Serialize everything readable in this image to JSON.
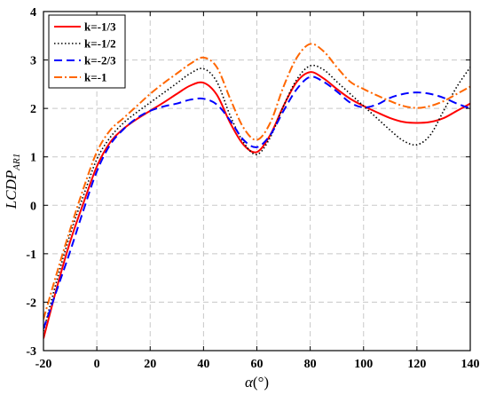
{
  "chart_data": {
    "type": "line",
    "title": "",
    "xlabel_main": "α",
    "xlabel_unit": "(°)",
    "ylabel_main": "LCDP",
    "ylabel_sub": "AR1",
    "xlim": [
      -20,
      140
    ],
    "ylim": [
      -3,
      4
    ],
    "xticks": [
      -20,
      0,
      20,
      40,
      60,
      80,
      100,
      120,
      140
    ],
    "yticks": [
      -3,
      -2,
      -1,
      0,
      1,
      2,
      3,
      4
    ],
    "grid": true,
    "legend_position": "top-left",
    "series": [
      {
        "name": "k=-1/3",
        "color": "#ff0000",
        "dash": "",
        "x": [
          -20,
          -15,
          -10,
          -5,
          0,
          5,
          10,
          15,
          20,
          25,
          30,
          35,
          40,
          45,
          50,
          55,
          60,
          65,
          70,
          75,
          80,
          85,
          90,
          95,
          100,
          105,
          110,
          115,
          120,
          125,
          130,
          135,
          140
        ],
        "y": [
          -2.75,
          -1.7,
          -0.75,
          0.05,
          0.8,
          1.3,
          1.58,
          1.78,
          1.95,
          2.12,
          2.3,
          2.47,
          2.53,
          2.28,
          1.7,
          1.25,
          1.1,
          1.45,
          2.05,
          2.55,
          2.75,
          2.62,
          2.4,
          2.2,
          2.05,
          1.92,
          1.8,
          1.72,
          1.7,
          1.72,
          1.8,
          1.95,
          2.1
        ]
      },
      {
        "name": "k=-1/2",
        "color": "#000000",
        "dash": "1.5,2.5",
        "x": [
          -20,
          -15,
          -10,
          -5,
          0,
          5,
          10,
          15,
          20,
          25,
          30,
          35,
          40,
          45,
          50,
          55,
          60,
          65,
          70,
          75,
          80,
          85,
          90,
          95,
          100,
          105,
          110,
          115,
          120,
          125,
          130,
          135,
          140
        ],
        "y": [
          -2.6,
          -1.55,
          -0.6,
          0.2,
          0.95,
          1.4,
          1.7,
          1.92,
          2.12,
          2.32,
          2.52,
          2.72,
          2.82,
          2.55,
          1.85,
          1.3,
          1.05,
          1.4,
          2.05,
          2.6,
          2.88,
          2.8,
          2.55,
          2.3,
          2.05,
          1.8,
          1.55,
          1.33,
          1.25,
          1.45,
          1.95,
          2.45,
          2.85
        ]
      },
      {
        "name": "k=-2/3",
        "color": "#0000ff",
        "dash": "9,5",
        "x": [
          -20,
          -15,
          -10,
          -5,
          0,
          5,
          10,
          15,
          20,
          25,
          30,
          35,
          40,
          45,
          50,
          55,
          60,
          65,
          70,
          75,
          80,
          85,
          90,
          95,
          100,
          105,
          110,
          115,
          120,
          125,
          130,
          135,
          140
        ],
        "y": [
          -2.55,
          -1.75,
          -0.95,
          -0.1,
          0.7,
          1.25,
          1.57,
          1.8,
          1.95,
          2.04,
          2.1,
          2.18,
          2.2,
          2.08,
          1.75,
          1.35,
          1.2,
          1.45,
          1.95,
          2.4,
          2.65,
          2.55,
          2.35,
          2.12,
          2.02,
          2.08,
          2.22,
          2.3,
          2.33,
          2.3,
          2.22,
          2.1,
          2.0
        ]
      },
      {
        "name": "k=-1",
        "color": "#ff6600",
        "dash": "9,3,2,3",
        "x": [
          -20,
          -15,
          -10,
          -5,
          0,
          5,
          10,
          15,
          20,
          25,
          30,
          35,
          40,
          45,
          50,
          55,
          60,
          65,
          70,
          75,
          80,
          85,
          90,
          95,
          100,
          105,
          110,
          115,
          120,
          125,
          130,
          135,
          140
        ],
        "y": [
          -2.35,
          -1.4,
          -0.5,
          0.35,
          1.1,
          1.55,
          1.8,
          2.05,
          2.3,
          2.52,
          2.72,
          2.92,
          3.05,
          2.85,
          2.2,
          1.6,
          1.35,
          1.7,
          2.45,
          3.05,
          3.33,
          3.18,
          2.85,
          2.55,
          2.4,
          2.27,
          2.15,
          2.05,
          2.01,
          2.05,
          2.15,
          2.3,
          2.45
        ]
      }
    ]
  }
}
